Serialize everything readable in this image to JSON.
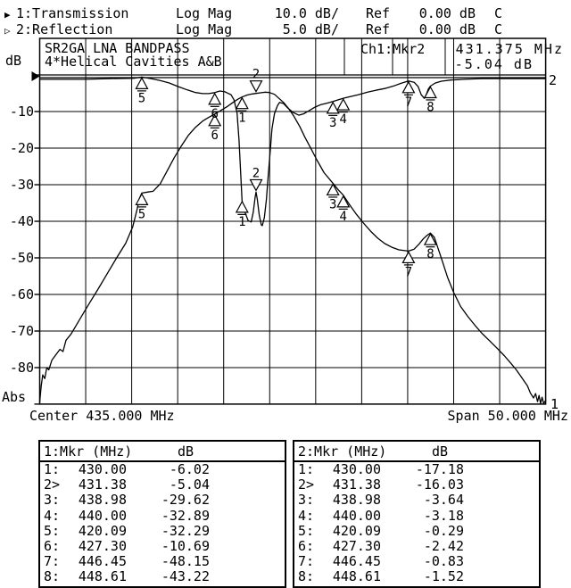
{
  "header": {
    "rows": [
      {
        "arrow": "▶",
        "label": "1:Transmission",
        "format": "Log Mag",
        "scale": "10.0 dB/",
        "ref_label": "Ref",
        "ref_value": "0.00 dB",
        "cal": "C"
      },
      {
        "arrow": "▷",
        "label": "2:Reflection",
        "format": "Log Mag",
        "scale": "5.0 dB/",
        "ref_label": "Ref",
        "ref_value": "0.00 dB",
        "cal": "C"
      }
    ]
  },
  "plot": {
    "title_line1": "SR2GA LNA BANDPASS",
    "title_line2": "4*Helical Cavities A&B",
    "channel_marker_label": "Ch1:Mkr2",
    "marker_freq": "431.375 MHz",
    "marker_value": "-5.04 dB",
    "y_axis_unit": "dB",
    "y_axis_bottom_label": "Abs",
    "y_tick_labels": [
      "-10",
      "-20",
      "-30",
      "-40",
      "-50",
      "-60",
      "-70",
      "-80"
    ],
    "center_label": "Center 435.000 MHz",
    "span_label": "Span 50.000 MHz",
    "trace1_edge_label": "1",
    "trace2_edge_label": "2"
  },
  "chart_data": {
    "type": "line",
    "title": "SR2GA LNA BANDPASS — 4*Helical Cavities A&B",
    "x_axis": {
      "label": "Frequency (MHz)",
      "center_MHz": 435.0,
      "span_MHz": 50.0,
      "start_MHz": 410.0,
      "stop_MHz": 460.0
    },
    "y_axis": {
      "label": "dB",
      "ref_dB": 0.0,
      "trace1_dB_per_div": 10.0,
      "trace2_dB_per_div": 5.0,
      "divisions": 9,
      "tick_labels_trace1": [
        -10,
        -20,
        -30,
        -40,
        -50,
        -60,
        -70,
        -80
      ]
    },
    "active_marker": {
      "label": "Ch1:Mkr2",
      "MHz": 431.375,
      "dB": -5.04
    },
    "markers": [
      {
        "n": 1,
        "MHz": 430.0,
        "transmission_dB": -6.02,
        "reflection_dB": -17.18,
        "active": false
      },
      {
        "n": 2,
        "MHz": 431.38,
        "transmission_dB": -5.04,
        "reflection_dB": -16.03,
        "active": true
      },
      {
        "n": 3,
        "MHz": 438.98,
        "transmission_dB": -29.62,
        "reflection_dB": -3.64,
        "active": false
      },
      {
        "n": 4,
        "MHz": 440.0,
        "transmission_dB": -32.89,
        "reflection_dB": -3.18,
        "active": false
      },
      {
        "n": 5,
        "MHz": 420.09,
        "transmission_dB": -32.29,
        "reflection_dB": -0.29,
        "active": false
      },
      {
        "n": 6,
        "MHz": 427.3,
        "transmission_dB": -10.69,
        "reflection_dB": -2.42,
        "active": false
      },
      {
        "n": 7,
        "MHz": 446.45,
        "transmission_dB": -48.15,
        "reflection_dB": -0.83,
        "active": false
      },
      {
        "n": 8,
        "MHz": 448.61,
        "transmission_dB": -43.22,
        "reflection_dB": -1.52,
        "active": false
      }
    ],
    "series": [
      {
        "name": "1:Transmission",
        "scale_dB_per_div": 10.0,
        "points": [
          [
            410.0,
            -89.5
          ],
          [
            410.15,
            -85
          ],
          [
            410.3,
            -82
          ],
          [
            410.5,
            -83
          ],
          [
            410.7,
            -80
          ],
          [
            410.9,
            -80.6
          ],
          [
            411.2,
            -78
          ],
          [
            411.6,
            -76.5
          ],
          [
            412.0,
            -75
          ],
          [
            412.3,
            -75.6
          ],
          [
            412.6,
            -72.5
          ],
          [
            413.1,
            -70.8
          ],
          [
            413.7,
            -68
          ],
          [
            414.3,
            -65.2
          ],
          [
            415.0,
            -62
          ],
          [
            415.8,
            -58.4
          ],
          [
            416.7,
            -54.2
          ],
          [
            417.6,
            -50
          ],
          [
            418.5,
            -46
          ],
          [
            419.2,
            -41.5
          ],
          [
            419.6,
            -37
          ],
          [
            419.85,
            -33.8
          ],
          [
            420.09,
            -32.29
          ],
          [
            420.7,
            -32.0
          ],
          [
            421.2,
            -31.8
          ],
          [
            421.9,
            -29.8
          ],
          [
            422.6,
            -26.2
          ],
          [
            423.3,
            -22.6
          ],
          [
            424.0,
            -19.4
          ],
          [
            424.7,
            -16.5
          ],
          [
            425.4,
            -14.3
          ],
          [
            426.1,
            -12.6
          ],
          [
            426.7,
            -11.6
          ],
          [
            427.3,
            -10.69
          ],
          [
            427.9,
            -9.7
          ],
          [
            428.5,
            -8.7
          ],
          [
            429.1,
            -7.5
          ],
          [
            429.6,
            -6.6
          ],
          [
            430.0,
            -6.02
          ],
          [
            430.5,
            -5.5
          ],
          [
            431.0,
            -5.2
          ],
          [
            431.38,
            -5.04
          ],
          [
            431.9,
            -4.85
          ],
          [
            432.3,
            -4.7
          ],
          [
            432.7,
            -4.8
          ],
          [
            433.2,
            -5.3
          ],
          [
            433.6,
            -6.3
          ],
          [
            434.1,
            -7.5
          ],
          [
            434.6,
            -9.2
          ],
          [
            435.1,
            -11.2
          ],
          [
            435.7,
            -14.1
          ],
          [
            436.2,
            -17
          ],
          [
            436.8,
            -20.1
          ],
          [
            437.4,
            -23.3
          ],
          [
            438.1,
            -26.7
          ],
          [
            438.98,
            -29.62
          ],
          [
            439.5,
            -31.4
          ],
          [
            440.0,
            -32.89
          ],
          [
            440.6,
            -35.4
          ],
          [
            441.3,
            -38.1
          ],
          [
            442.0,
            -40.5
          ],
          [
            442.7,
            -42.7
          ],
          [
            443.4,
            -44.6
          ],
          [
            444.1,
            -46.1
          ],
          [
            444.8,
            -47.1
          ],
          [
            445.5,
            -47.8
          ],
          [
            446.45,
            -48.15
          ],
          [
            447.0,
            -47.6
          ],
          [
            447.5,
            -46.2
          ],
          [
            447.9,
            -44.8
          ],
          [
            448.3,
            -43.8
          ],
          [
            448.61,
            -43.22
          ],
          [
            449.0,
            -44.4
          ],
          [
            449.3,
            -46.8
          ],
          [
            449.8,
            -51
          ],
          [
            450.3,
            -55.3
          ],
          [
            450.9,
            -59.4
          ],
          [
            451.6,
            -63.3
          ],
          [
            452.3,
            -66
          ],
          [
            453.0,
            -68.4
          ],
          [
            453.7,
            -70.6
          ],
          [
            454.4,
            -72.5
          ],
          [
            455.2,
            -74.7
          ],
          [
            455.9,
            -76.7
          ],
          [
            456.5,
            -78.6
          ],
          [
            457.1,
            -80.6
          ],
          [
            457.7,
            -83
          ],
          [
            458.2,
            -85
          ],
          [
            458.5,
            -87
          ],
          [
            458.8,
            -88.3
          ],
          [
            459.0,
            -87.1
          ],
          [
            459.2,
            -89.3
          ],
          [
            459.35,
            -87.6
          ],
          [
            459.5,
            -89.8
          ],
          [
            459.65,
            -88.1
          ],
          [
            459.8,
            -89.8
          ],
          [
            460.0,
            -89
          ]
        ]
      },
      {
        "name": "2:Reflection",
        "scale_dB_per_div": 5.0,
        "points": [
          [
            410.0,
            -0.6
          ],
          [
            412.0,
            -0.6
          ],
          [
            414.5,
            -0.6
          ],
          [
            417.0,
            -0.5
          ],
          [
            419.3,
            -0.45
          ],
          [
            420.09,
            -0.29
          ],
          [
            421.0,
            -0.5
          ],
          [
            421.9,
            -0.75
          ],
          [
            422.8,
            -1.1
          ],
          [
            423.7,
            -1.6
          ],
          [
            424.6,
            -2.05
          ],
          [
            425.4,
            -2.4
          ],
          [
            426.1,
            -2.55
          ],
          [
            426.7,
            -2.55
          ],
          [
            427.3,
            -2.42
          ],
          [
            427.8,
            -2.2
          ],
          [
            428.3,
            -2.3
          ],
          [
            428.9,
            -2.7
          ],
          [
            429.2,
            -3.4
          ],
          [
            429.5,
            -5.2
          ],
          [
            429.7,
            -8.9
          ],
          [
            429.85,
            -13
          ],
          [
            430.0,
            -17.18
          ],
          [
            430.3,
            -18.8
          ],
          [
            430.6,
            -19.9
          ],
          [
            430.9,
            -20.1
          ],
          [
            431.1,
            -18.8
          ],
          [
            431.3,
            -16.6
          ],
          [
            431.38,
            -16.03
          ],
          [
            431.5,
            -17
          ],
          [
            431.7,
            -19.2
          ],
          [
            431.9,
            -20.5
          ],
          [
            432.0,
            -20.6
          ],
          [
            432.2,
            -19.5
          ],
          [
            432.4,
            -17
          ],
          [
            432.6,
            -13.5
          ],
          [
            432.8,
            -10.1
          ],
          [
            432.95,
            -7.4
          ],
          [
            433.2,
            -5.3
          ],
          [
            433.5,
            -4.2
          ],
          [
            433.7,
            -3.75
          ],
          [
            434.1,
            -3.9
          ],
          [
            434.5,
            -4.5
          ],
          [
            435.0,
            -5.1
          ],
          [
            435.6,
            -5.5
          ],
          [
            436.1,
            -5.3
          ],
          [
            436.6,
            -4.9
          ],
          [
            437.2,
            -4.4
          ],
          [
            437.8,
            -4.05
          ],
          [
            438.4,
            -3.85
          ],
          [
            438.98,
            -3.64
          ],
          [
            439.5,
            -3.4
          ],
          [
            440.0,
            -3.18
          ],
          [
            440.7,
            -2.95
          ],
          [
            441.5,
            -2.7
          ],
          [
            442.4,
            -2.35
          ],
          [
            443.2,
            -2.1
          ],
          [
            444.1,
            -1.85
          ],
          [
            445.0,
            -1.5
          ],
          [
            445.7,
            -1.15
          ],
          [
            446.45,
            -0.83
          ],
          [
            447.0,
            -1.0
          ],
          [
            447.4,
            -1.6
          ],
          [
            447.7,
            -2.7
          ],
          [
            448.0,
            -3.2
          ],
          [
            448.2,
            -2.7
          ],
          [
            448.4,
            -1.95
          ],
          [
            448.61,
            -1.52
          ],
          [
            449.1,
            -1.1
          ],
          [
            449.7,
            -0.85
          ],
          [
            450.6,
            -0.7
          ],
          [
            451.9,
            -0.6
          ],
          [
            453.7,
            -0.5
          ],
          [
            456.3,
            -0.5
          ],
          [
            460.0,
            -0.5
          ]
        ]
      }
    ]
  },
  "tables": [
    {
      "header_channel": "1:Mkr (MHz)",
      "header_unit": "dB",
      "rows": [
        {
          "n": "1:",
          "f": "430.00",
          "v": "-6.02"
        },
        {
          "n": "2>",
          "f": "431.38",
          "v": "-5.04"
        },
        {
          "n": "3:",
          "f": "438.98",
          "v": "-29.62"
        },
        {
          "n": "4:",
          "f": "440.00",
          "v": "-32.89"
        },
        {
          "n": "5:",
          "f": "420.09",
          "v": "-32.29"
        },
        {
          "n": "6:",
          "f": "427.30",
          "v": "-10.69"
        },
        {
          "n": "7:",
          "f": "446.45",
          "v": "-48.15"
        },
        {
          "n": "8:",
          "f": "448.61",
          "v": "-43.22"
        }
      ]
    },
    {
      "header_channel": "2:Mkr (MHz)",
      "header_unit": "dB",
      "rows": [
        {
          "n": "1:",
          "f": "430.00",
          "v": "-17.18"
        },
        {
          "n": "2>",
          "f": "431.38",
          "v": "-16.03"
        },
        {
          "n": "3:",
          "f": "438.98",
          "v": "-3.64"
        },
        {
          "n": "4:",
          "f": "440.00",
          "v": "-3.18"
        },
        {
          "n": "5:",
          "f": "420.09",
          "v": "-0.29"
        },
        {
          "n": "6:",
          "f": "427.30",
          "v": "-2.42"
        },
        {
          "n": "7:",
          "f": "446.45",
          "v": "-0.83"
        },
        {
          "n": "8:",
          "f": "448.61",
          "v": "-1.52"
        }
      ]
    }
  ]
}
